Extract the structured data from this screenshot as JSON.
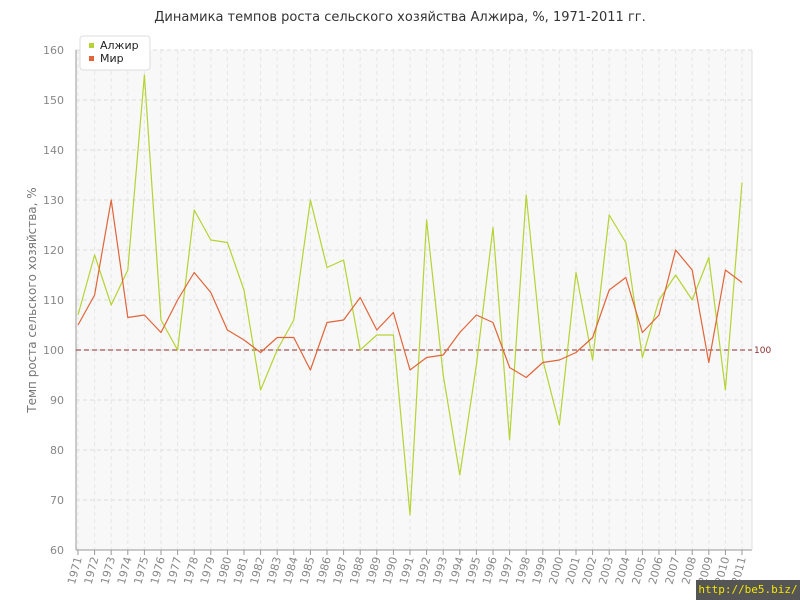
{
  "chart_data": {
    "type": "line",
    "title": "Динамика темпов роста сельского хозяйства Алжира, %, 1971-2011 гг.",
    "xlabel": "",
    "ylabel": "Темп роста сельского хозяйства, %",
    "ylim": [
      60,
      160
    ],
    "yticks": [
      60,
      70,
      80,
      90,
      100,
      110,
      120,
      130,
      140,
      150,
      160
    ],
    "grid": true,
    "legend_position": "top-left",
    "reference_line": {
      "value": 100,
      "label": "100",
      "color": "#8b2e2e"
    },
    "x": [
      "1971",
      "1972",
      "1973",
      "1974",
      "1975",
      "1976",
      "1977",
      "1978",
      "1979",
      "1980",
      "1981",
      "1982",
      "1983",
      "1984",
      "1985",
      "1986",
      "1987",
      "1988",
      "1989",
      "1990",
      "1991",
      "1992",
      "1993",
      "1994",
      "1995",
      "1996",
      "1997",
      "1998",
      "1999",
      "2000",
      "2001",
      "2002",
      "2003",
      "2004",
      "2005",
      "2006",
      "2007",
      "2008",
      "2009",
      "2010",
      "2011"
    ],
    "series": [
      {
        "name": "Алжир",
        "color": "#b5d334",
        "values": [
          107,
          119,
          109,
          116,
          155,
          106,
          100,
          128,
          122,
          121.5,
          112,
          92,
          100,
          106,
          130,
          116.5,
          118,
          100,
          103,
          103,
          67,
          126,
          95,
          75,
          97,
          124.5,
          82,
          131,
          98,
          85,
          115.5,
          98,
          127,
          121.5,
          98.5,
          110,
          115,
          110,
          118.5,
          92,
          133.5
        ]
      },
      {
        "name": "Мир",
        "color": "#e0653a",
        "values": [
          105,
          111,
          130,
          106.5,
          107,
          103.5,
          110,
          115.5,
          111.5,
          104,
          102,
          99.5,
          102.5,
          102.5,
          96,
          105.5,
          106,
          110.5,
          104,
          107.5,
          96,
          98.5,
          99,
          103.5,
          107,
          105.5,
          96.5,
          94.5,
          97.5,
          98,
          99.5,
          102.5,
          112,
          114.5,
          103.5,
          107,
          120,
          116,
          97.5,
          116,
          113.5
        ]
      }
    ]
  },
  "watermark": "http://be5.biz/"
}
